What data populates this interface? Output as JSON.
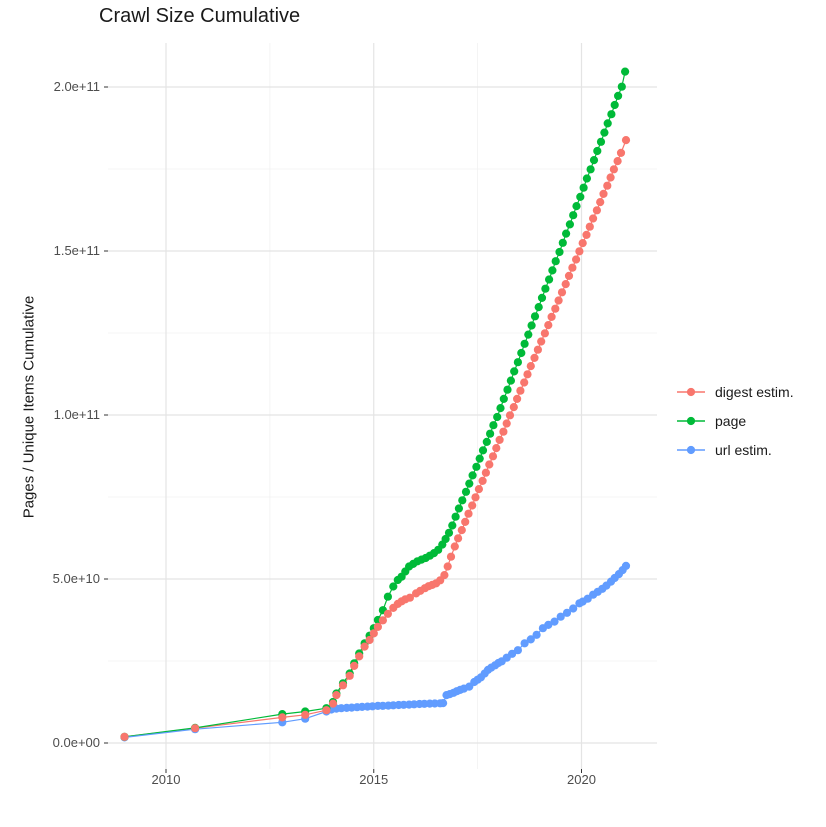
{
  "title": "Crawl Size Cumulative",
  "axes": {
    "y_label": "Pages / Unique Items Cumulative",
    "x_label": ""
  },
  "chart_data": {
    "type": "scatter",
    "title": "Crawl Size Cumulative",
    "xlabel": "",
    "ylabel": "Pages / Unique Items Cumulative",
    "grid": true,
    "legend_position": "right",
    "unit_note": "y values stored in billions (1e9 items); x is decimal year",
    "xlim": [
      2008.6,
      2021.8
    ],
    "ylim_e9": [
      0,
      213
    ],
    "x_ticks": [
      2010,
      2015,
      2020
    ],
    "x_tick_labels": [
      "2010",
      "2015",
      "2020"
    ],
    "x_minor_ticks": [
      2012.5,
      2017.5
    ],
    "y_ticks_e9": [
      0,
      50,
      100,
      150,
      200
    ],
    "y_tick_labels": [
      "0.0e+00",
      "5.0e+10",
      "1.0e+11",
      "1.5e+11",
      "2.0e+11"
    ],
    "y_minor_ticks_e9": [
      25,
      75,
      125,
      175
    ],
    "series": [
      {
        "name": "digest estim.",
        "id": "digest-estim",
        "color": "#F8766D",
        "points": [
          [
            2009.0,
            1.9
          ],
          [
            2010.7,
            4.5
          ],
          [
            2012.8,
            7.8
          ],
          [
            2013.35,
            8.6
          ],
          [
            2013.86,
            10.0
          ],
          [
            2014.02,
            12.0
          ],
          [
            2014.1,
            14.6
          ],
          [
            2014.26,
            17.6
          ],
          [
            2014.42,
            20.5
          ],
          [
            2014.53,
            23.5
          ],
          [
            2014.65,
            26.4
          ],
          [
            2014.78,
            29.4
          ],
          [
            2014.9,
            31.4
          ],
          [
            2015.0,
            33.4
          ],
          [
            2015.1,
            35.4
          ],
          [
            2015.22,
            37.4
          ],
          [
            2015.34,
            39.4
          ],
          [
            2015.47,
            41.2
          ],
          [
            2015.58,
            42.4
          ],
          [
            2015.67,
            43.2
          ],
          [
            2015.76,
            43.8
          ],
          [
            2015.87,
            44.3
          ],
          [
            2016.02,
            45.6
          ],
          [
            2016.12,
            46.4
          ],
          [
            2016.23,
            47.2
          ],
          [
            2016.32,
            47.8
          ],
          [
            2016.41,
            48.2
          ],
          [
            2016.5,
            48.7
          ],
          [
            2016.6,
            49.6
          ],
          [
            2016.7,
            51.2
          ],
          [
            2016.78,
            53.8
          ],
          [
            2016.86,
            56.8
          ],
          [
            2016.95,
            59.9
          ],
          [
            2017.03,
            62.4
          ],
          [
            2017.12,
            64.9
          ],
          [
            2017.2,
            67.4
          ],
          [
            2017.28,
            69.9
          ],
          [
            2017.37,
            72.4
          ],
          [
            2017.45,
            74.9
          ],
          [
            2017.53,
            77.4
          ],
          [
            2017.62,
            79.9
          ],
          [
            2017.7,
            82.4
          ],
          [
            2017.78,
            84.9
          ],
          [
            2017.87,
            87.4
          ],
          [
            2017.95,
            89.9
          ],
          [
            2018.03,
            92.4
          ],
          [
            2018.12,
            94.9
          ],
          [
            2018.2,
            97.4
          ],
          [
            2018.28,
            99.9
          ],
          [
            2018.37,
            102.4
          ],
          [
            2018.45,
            104.9
          ],
          [
            2018.53,
            107.4
          ],
          [
            2018.62,
            109.9
          ],
          [
            2018.7,
            112.4
          ],
          [
            2018.78,
            114.9
          ],
          [
            2018.87,
            117.4
          ],
          [
            2018.95,
            119.9
          ],
          [
            2019.03,
            122.4
          ],
          [
            2019.12,
            124.9
          ],
          [
            2019.2,
            127.4
          ],
          [
            2019.28,
            129.9
          ],
          [
            2019.37,
            132.4
          ],
          [
            2019.45,
            134.9
          ],
          [
            2019.53,
            137.4
          ],
          [
            2019.62,
            139.9
          ],
          [
            2019.7,
            142.4
          ],
          [
            2019.78,
            144.9
          ],
          [
            2019.87,
            147.4
          ],
          [
            2019.95,
            149.9
          ],
          [
            2020.03,
            152.4
          ],
          [
            2020.12,
            154.9
          ],
          [
            2020.2,
            157.4
          ],
          [
            2020.28,
            159.9
          ],
          [
            2020.37,
            162.4
          ],
          [
            2020.45,
            164.9
          ],
          [
            2020.53,
            167.4
          ],
          [
            2020.62,
            169.9
          ],
          [
            2020.7,
            172.4
          ],
          [
            2020.78,
            174.9
          ],
          [
            2020.87,
            177.4
          ],
          [
            2020.95,
            179.9
          ],
          [
            2021.07,
            183.8
          ]
        ]
      },
      {
        "name": "page",
        "id": "page",
        "color": "#00BA38",
        "points": [
          [
            2009.0,
            1.9
          ],
          [
            2010.7,
            4.6
          ],
          [
            2012.8,
            8.8
          ],
          [
            2013.35,
            9.6
          ],
          [
            2013.86,
            10.6
          ],
          [
            2014.02,
            12.5
          ],
          [
            2014.1,
            15.1
          ],
          [
            2014.26,
            18.2
          ],
          [
            2014.42,
            21.2
          ],
          [
            2014.53,
            24.3
          ],
          [
            2014.65,
            27.3
          ],
          [
            2014.78,
            30.4
          ],
          [
            2014.9,
            32.7
          ],
          [
            2015.0,
            35.0
          ],
          [
            2015.1,
            37.5
          ],
          [
            2015.22,
            40.5
          ],
          [
            2015.34,
            44.6
          ],
          [
            2015.47,
            47.7
          ],
          [
            2015.58,
            49.7
          ],
          [
            2015.67,
            50.7
          ],
          [
            2015.76,
            52.3
          ],
          [
            2015.85,
            53.8
          ],
          [
            2015.95,
            54.6
          ],
          [
            2016.05,
            55.4
          ],
          [
            2016.15,
            55.9
          ],
          [
            2016.25,
            56.4
          ],
          [
            2016.35,
            57.1
          ],
          [
            2016.45,
            57.9
          ],
          [
            2016.55,
            58.9
          ],
          [
            2016.65,
            60.5
          ],
          [
            2016.73,
            62.2
          ],
          [
            2016.81,
            64.1
          ],
          [
            2016.89,
            66.3
          ],
          [
            2016.97,
            69.0
          ],
          [
            2017.05,
            71.5
          ],
          [
            2017.13,
            74.0
          ],
          [
            2017.22,
            76.6
          ],
          [
            2017.3,
            79.1
          ],
          [
            2017.38,
            81.6
          ],
          [
            2017.47,
            84.2
          ],
          [
            2017.55,
            86.7
          ],
          [
            2017.63,
            89.2
          ],
          [
            2017.72,
            91.8
          ],
          [
            2017.8,
            94.3
          ],
          [
            2017.88,
            96.9
          ],
          [
            2017.97,
            99.4
          ],
          [
            2018.05,
            102.1
          ],
          [
            2018.13,
            104.9
          ],
          [
            2018.22,
            107.7
          ],
          [
            2018.3,
            110.5
          ],
          [
            2018.38,
            113.3
          ],
          [
            2018.47,
            116.1
          ],
          [
            2018.55,
            118.9
          ],
          [
            2018.63,
            121.7
          ],
          [
            2018.72,
            124.5
          ],
          [
            2018.8,
            127.3
          ],
          [
            2018.88,
            130.1
          ],
          [
            2018.97,
            132.9
          ],
          [
            2019.05,
            135.7
          ],
          [
            2019.13,
            138.5
          ],
          [
            2019.22,
            141.3
          ],
          [
            2019.3,
            144.1
          ],
          [
            2019.38,
            146.9
          ],
          [
            2019.47,
            149.7
          ],
          [
            2019.55,
            152.5
          ],
          [
            2019.63,
            155.3
          ],
          [
            2019.72,
            158.1
          ],
          [
            2019.8,
            160.9
          ],
          [
            2019.88,
            163.7
          ],
          [
            2019.97,
            166.5
          ],
          [
            2020.05,
            169.3
          ],
          [
            2020.13,
            172.1
          ],
          [
            2020.22,
            174.9
          ],
          [
            2020.3,
            177.7
          ],
          [
            2020.38,
            180.5
          ],
          [
            2020.47,
            183.3
          ],
          [
            2020.55,
            186.1
          ],
          [
            2020.63,
            188.9
          ],
          [
            2020.72,
            191.7
          ],
          [
            2020.8,
            194.5
          ],
          [
            2020.88,
            197.3
          ],
          [
            2020.97,
            200.1
          ],
          [
            2021.05,
            204.7
          ]
        ]
      },
      {
        "name": "url estim.",
        "id": "url-estim",
        "color": "#619CFF",
        "points": [
          [
            2009.0,
            1.7
          ],
          [
            2010.7,
            4.2
          ],
          [
            2012.8,
            6.3
          ],
          [
            2013.35,
            7.4
          ],
          [
            2013.86,
            9.6
          ],
          [
            2013.98,
            10.2
          ],
          [
            2014.1,
            10.5
          ],
          [
            2014.22,
            10.6
          ],
          [
            2014.35,
            10.7
          ],
          [
            2014.47,
            10.8
          ],
          [
            2014.6,
            10.9
          ],
          [
            2014.72,
            11.0
          ],
          [
            2014.85,
            11.1
          ],
          [
            2014.97,
            11.2
          ],
          [
            2015.1,
            11.3
          ],
          [
            2015.22,
            11.35
          ],
          [
            2015.35,
            11.4
          ],
          [
            2015.47,
            11.5
          ],
          [
            2015.6,
            11.6
          ],
          [
            2015.72,
            11.65
          ],
          [
            2015.85,
            11.7
          ],
          [
            2015.97,
            11.8
          ],
          [
            2016.1,
            11.9
          ],
          [
            2016.22,
            11.95
          ],
          [
            2016.35,
            12.0
          ],
          [
            2016.47,
            12.05
          ],
          [
            2016.6,
            12.1
          ],
          [
            2016.67,
            12.15
          ],
          [
            2016.75,
            14.6
          ],
          [
            2016.83,
            14.9
          ],
          [
            2016.92,
            15.3
          ],
          [
            2017.0,
            15.8
          ],
          [
            2017.08,
            16.2
          ],
          [
            2017.17,
            16.6
          ],
          [
            2017.3,
            17.2
          ],
          [
            2017.42,
            18.6
          ],
          [
            2017.5,
            19.3
          ],
          [
            2017.58,
            20.0
          ],
          [
            2017.67,
            21.2
          ],
          [
            2017.75,
            22.3
          ],
          [
            2017.83,
            23.0
          ],
          [
            2017.92,
            23.7
          ],
          [
            2018.0,
            24.4
          ],
          [
            2018.08,
            24.9
          ],
          [
            2018.2,
            26.0
          ],
          [
            2018.33,
            27.2
          ],
          [
            2018.47,
            28.3
          ],
          [
            2018.63,
            30.4
          ],
          [
            2018.78,
            31.6
          ],
          [
            2018.92,
            33.0
          ],
          [
            2019.07,
            35.0
          ],
          [
            2019.2,
            36.0
          ],
          [
            2019.35,
            37.0
          ],
          [
            2019.5,
            38.5
          ],
          [
            2019.65,
            39.7
          ],
          [
            2019.8,
            41.0
          ],
          [
            2019.95,
            42.6
          ],
          [
            2020.03,
            43.1
          ],
          [
            2020.15,
            44.0
          ],
          [
            2020.28,
            45.2
          ],
          [
            2020.39,
            46.1
          ],
          [
            2020.5,
            47.0
          ],
          [
            2020.6,
            48.0
          ],
          [
            2020.71,
            49.2
          ],
          [
            2020.8,
            50.3
          ],
          [
            2020.9,
            51.5
          ],
          [
            2020.99,
            52.7
          ],
          [
            2021.07,
            54.0
          ]
        ]
      }
    ]
  }
}
